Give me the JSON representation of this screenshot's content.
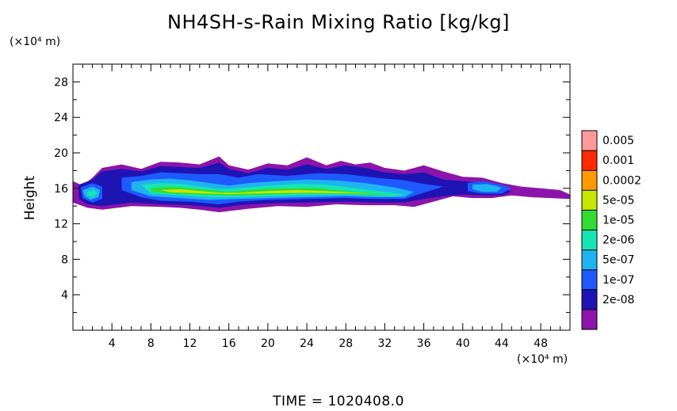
{
  "chart_data": {
    "type": "heatmap",
    "title": "NH4SH-s-Rain Mixing Ratio [kg/kg]",
    "ylabel": "Height",
    "x_unit": "(×10⁴ m)",
    "y_unit": "(×10⁴ m)",
    "xlim": [
      0,
      51
    ],
    "ylim": [
      0,
      30
    ],
    "x_ticks": [
      4,
      8,
      12,
      16,
      20,
      24,
      28,
      32,
      36,
      40,
      44,
      48
    ],
    "y_ticks": [
      4,
      8,
      12,
      16,
      20,
      24,
      28
    ],
    "colorbar": {
      "levels": [
        "0.005",
        "0.001",
        "0.0002",
        "5e-05",
        "1e-05",
        "2e-06",
        "5e-07",
        "1e-07",
        "2e-08"
      ],
      "colors": [
        "#ff9a9a",
        "#ff2a00",
        "#ff9a00",
        "#c8e600",
        "#32dc32",
        "#14e6b4",
        "#1eb4f0",
        "#1e5aff",
        "#1e14b4",
        "#8c14aa"
      ]
    },
    "field": [
      {
        "level": 0,
        "points": [
          [
            0,
            16.8
          ],
          [
            1,
            16.3
          ],
          [
            2,
            17.2
          ],
          [
            3,
            18.3
          ],
          [
            5,
            18.7
          ],
          [
            7,
            18.2
          ],
          [
            9,
            19.0
          ],
          [
            11,
            18.9
          ],
          [
            13,
            18.7
          ],
          [
            15,
            19.6
          ],
          [
            16,
            18.6
          ],
          [
            18,
            18.1
          ],
          [
            20,
            18.8
          ],
          [
            22,
            18.6
          ],
          [
            24,
            19.5
          ],
          [
            26,
            18.6
          ],
          [
            27.5,
            19.1
          ],
          [
            29,
            18.7
          ],
          [
            30.5,
            18.9
          ],
          [
            32,
            18.3
          ],
          [
            34,
            18.0
          ],
          [
            36,
            18.6
          ],
          [
            38,
            17.9
          ],
          [
            40,
            17.3
          ],
          [
            42,
            17.2
          ],
          [
            44,
            16.6
          ],
          [
            46,
            16.2
          ],
          [
            48,
            16.0
          ],
          [
            50,
            15.8
          ],
          [
            51,
            15.3
          ],
          [
            51,
            14.8
          ],
          [
            49,
            14.9
          ],
          [
            47,
            15.0
          ],
          [
            45,
            15.2
          ],
          [
            43,
            14.9
          ],
          [
            41,
            14.9
          ],
          [
            39,
            15.1
          ],
          [
            37,
            14.5
          ],
          [
            35,
            13.9
          ],
          [
            33,
            14.1
          ],
          [
            30,
            14.1
          ],
          [
            27,
            14.2
          ],
          [
            24,
            13.9
          ],
          [
            21,
            14.0
          ],
          [
            18,
            13.7
          ],
          [
            15,
            13.3
          ],
          [
            13,
            13.6
          ],
          [
            11,
            13.8
          ],
          [
            9,
            13.9
          ],
          [
            6,
            14.0
          ],
          [
            3,
            13.6
          ],
          [
            1.5,
            13.8
          ],
          [
            0,
            14.4
          ]
        ]
      },
      {
        "level": 1,
        "points": [
          [
            0.6,
            16.4
          ],
          [
            2,
            17.0
          ],
          [
            3,
            17.9
          ],
          [
            5,
            18.2
          ],
          [
            7,
            17.9
          ],
          [
            9,
            18.5
          ],
          [
            11,
            18.4
          ],
          [
            13,
            18.3
          ],
          [
            15,
            18.9
          ],
          [
            16,
            18.2
          ],
          [
            18,
            17.7
          ],
          [
            20,
            18.3
          ],
          [
            22,
            18.1
          ],
          [
            24,
            18.7
          ],
          [
            26,
            18.2
          ],
          [
            28,
            18.6
          ],
          [
            30,
            18.3
          ],
          [
            32,
            17.8
          ],
          [
            34,
            17.6
          ],
          [
            36,
            17.8
          ],
          [
            38,
            17.0
          ],
          [
            40,
            16.8
          ],
          [
            42,
            16.6
          ],
          [
            44,
            16.1
          ],
          [
            45,
            15.6
          ],
          [
            44,
            15.2
          ],
          [
            42,
            15.2
          ],
          [
            40,
            15.3
          ],
          [
            38,
            15.1
          ],
          [
            36,
            14.8
          ],
          [
            34,
            14.4
          ],
          [
            31,
            14.4
          ],
          [
            28,
            14.5
          ],
          [
            24,
            14.4
          ],
          [
            20,
            14.3
          ],
          [
            17,
            14.1
          ],
          [
            15,
            13.8
          ],
          [
            12,
            14.1
          ],
          [
            9,
            14.2
          ],
          [
            6,
            14.4
          ],
          [
            3,
            14.0
          ],
          [
            1.5,
            14.2
          ],
          [
            0.6,
            14.8
          ]
        ]
      },
      {
        "level": 2,
        "points": [
          [
            5,
            17.2
          ],
          [
            7,
            17.4
          ],
          [
            9,
            17.8
          ],
          [
            11,
            17.7
          ],
          [
            13,
            17.6
          ],
          [
            15,
            17.6
          ],
          [
            17,
            17.2
          ],
          [
            19,
            17.6
          ],
          [
            22,
            17.4
          ],
          [
            25,
            17.7
          ],
          [
            28,
            17.6
          ],
          [
            31,
            17.2
          ],
          [
            34,
            16.9
          ],
          [
            36,
            16.5
          ],
          [
            38,
            16.2
          ],
          [
            36,
            15.5
          ],
          [
            34,
            14.8
          ],
          [
            31,
            14.8
          ],
          [
            28,
            14.9
          ],
          [
            24,
            14.8
          ],
          [
            20,
            14.7
          ],
          [
            17,
            14.5
          ],
          [
            15,
            14.2
          ],
          [
            12,
            14.5
          ],
          [
            9,
            14.6
          ],
          [
            7,
            15.0
          ],
          [
            5,
            15.8
          ]
        ]
      },
      {
        "level": 2,
        "points": [
          [
            40.5,
            16.6
          ],
          [
            42,
            16.8
          ],
          [
            44,
            16.4
          ],
          [
            45,
            16.0
          ],
          [
            44,
            15.4
          ],
          [
            42,
            15.4
          ],
          [
            40.5,
            15.7
          ]
        ]
      },
      {
        "level": 2,
        "points": [
          [
            0.8,
            16.1
          ],
          [
            2,
            16.6
          ],
          [
            3,
            16.2
          ],
          [
            3,
            14.8
          ],
          [
            2,
            14.4
          ],
          [
            1,
            14.9
          ]
        ]
      },
      {
        "level": 3,
        "points": [
          [
            6,
            16.7
          ],
          [
            8,
            17.0
          ],
          [
            10,
            17.1
          ],
          [
            12,
            16.9
          ],
          [
            14,
            16.6
          ],
          [
            16,
            16.3
          ],
          [
            18,
            16.6
          ],
          [
            21,
            16.8
          ],
          [
            24,
            17.0
          ],
          [
            27,
            16.9
          ],
          [
            30,
            16.6
          ],
          [
            33,
            16.1
          ],
          [
            35,
            15.6
          ],
          [
            34,
            15.0
          ],
          [
            31,
            15.0
          ],
          [
            28,
            15.1
          ],
          [
            24,
            15.0
          ],
          [
            20,
            14.9
          ],
          [
            17,
            14.8
          ],
          [
            14,
            14.7
          ],
          [
            11,
            14.9
          ],
          [
            8,
            15.1
          ],
          [
            6,
            15.8
          ]
        ]
      },
      {
        "level": 3,
        "points": [
          [
            41,
            16.4
          ],
          [
            42.5,
            16.5
          ],
          [
            44,
            16.1
          ],
          [
            43.5,
            15.6
          ],
          [
            42,
            15.6
          ],
          [
            41,
            15.9
          ]
        ]
      },
      {
        "level": 3,
        "points": [
          [
            1,
            15.8
          ],
          [
            2,
            16.2
          ],
          [
            2.8,
            15.8
          ],
          [
            2.6,
            15.0
          ],
          [
            1.8,
            14.7
          ],
          [
            1.2,
            15.1
          ]
        ]
      },
      {
        "level": 4,
        "points": [
          [
            7,
            16.4
          ],
          [
            9,
            16.6
          ],
          [
            11,
            16.5
          ],
          [
            13,
            16.2
          ],
          [
            15,
            15.9
          ],
          [
            17,
            16.0
          ],
          [
            20,
            16.3
          ],
          [
            23,
            16.5
          ],
          [
            26,
            16.4
          ],
          [
            29,
            16.0
          ],
          [
            32,
            15.6
          ],
          [
            34,
            15.3
          ],
          [
            33,
            15.1
          ],
          [
            30,
            15.2
          ],
          [
            27,
            15.3
          ],
          [
            23,
            15.2
          ],
          [
            20,
            15.1
          ],
          [
            17,
            15.0
          ],
          [
            14,
            15.0
          ],
          [
            11,
            15.2
          ],
          [
            8,
            15.4
          ]
        ]
      },
      {
        "level": 4,
        "points": [
          [
            1.4,
            15.6
          ],
          [
            2.2,
            15.8
          ],
          [
            2.5,
            15.4
          ],
          [
            2.0,
            15.0
          ],
          [
            1.5,
            15.2
          ]
        ]
      },
      {
        "level": 5,
        "points": [
          [
            8,
            16.0
          ],
          [
            10,
            16.2
          ],
          [
            12,
            16.0
          ],
          [
            14,
            15.8
          ],
          [
            16,
            15.6
          ],
          [
            19,
            15.9
          ],
          [
            22,
            16.0
          ],
          [
            25,
            16.0
          ],
          [
            28,
            15.7
          ],
          [
            31,
            15.4
          ],
          [
            33,
            15.3
          ],
          [
            30,
            15.3
          ],
          [
            27,
            15.4
          ],
          [
            23,
            15.4
          ],
          [
            20,
            15.3
          ],
          [
            16,
            15.2
          ],
          [
            13,
            15.3
          ],
          [
            10,
            15.4
          ],
          [
            8,
            15.6
          ]
        ]
      },
      {
        "level": 6,
        "points": [
          [
            9,
            15.8
          ],
          [
            11,
            15.9
          ],
          [
            13,
            15.7
          ],
          [
            15,
            15.5
          ],
          [
            17,
            15.5
          ],
          [
            20,
            15.7
          ],
          [
            23,
            15.8
          ],
          [
            26,
            15.7
          ],
          [
            29,
            15.5
          ],
          [
            31,
            15.4
          ],
          [
            28,
            15.45
          ],
          [
            24,
            15.5
          ],
          [
            20,
            15.45
          ],
          [
            16,
            15.35
          ],
          [
            13,
            15.45
          ],
          [
            10,
            15.55
          ]
        ]
      }
    ],
    "grid": false
  },
  "footer": {
    "time_label": "TIME = 1020408.0"
  }
}
